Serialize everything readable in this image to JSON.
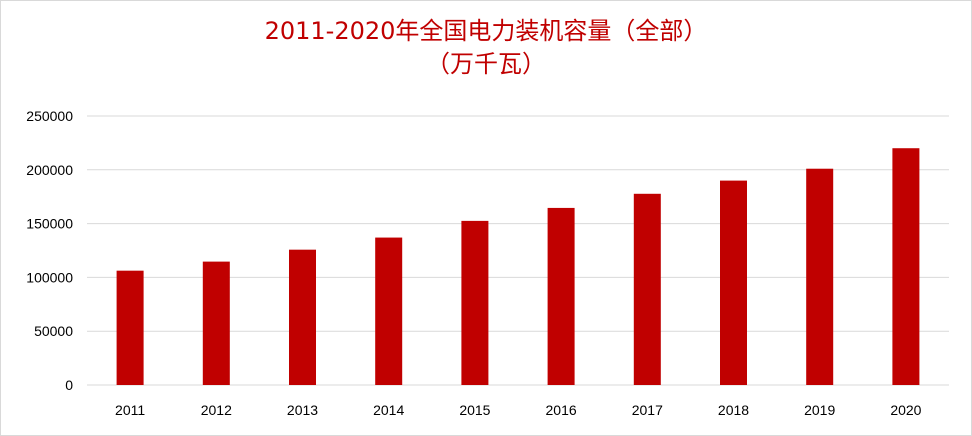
{
  "chart_data": {
    "type": "bar",
    "title_line1": "2011-2020年全国电力装机容量（全部）",
    "title_line2": "（万千瓦）",
    "categories": [
      "2011",
      "2012",
      "2013",
      "2014",
      "2015",
      "2016",
      "2017",
      "2018",
      "2019",
      "2020"
    ],
    "series": [
      {
        "values": [
          106253,
          114676,
          125768,
          137018,
          152527,
          164575,
          177703,
          189967,
          201006,
          220058
        ]
      }
    ],
    "ylim": [
      0,
      250000
    ],
    "yticks": [
      0,
      50000,
      100000,
      150000,
      200000,
      250000
    ],
    "grid": true,
    "legend": "none",
    "bar_color": "#c00000",
    "grid_color": "#d9d9d9"
  }
}
